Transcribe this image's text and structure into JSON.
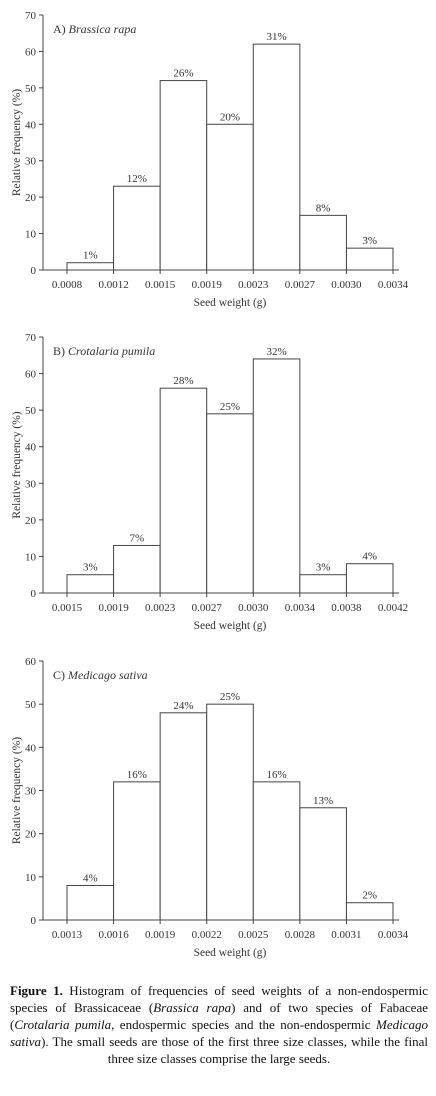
{
  "chart_data": [
    {
      "type": "bar",
      "panel_label": "A)",
      "title": "Brassica rapa",
      "xlabel": "Seed weight (g)",
      "ylabel": "Relative frequency (%)",
      "x_ticks": [
        "0.0008",
        "0.0012",
        "0.0015",
        "0.0019",
        "0.0023",
        "0.0027",
        "0.0030",
        "0.0034"
      ],
      "values": [
        2,
        23,
        52,
        40,
        62,
        15,
        6
      ],
      "data_labels": [
        "1%",
        "12%",
        "26%",
        "20%",
        "31%",
        "8%",
        "3%"
      ],
      "ylim": [
        0,
        70
      ],
      "y_ticks": [
        "0",
        "10",
        "20",
        "30",
        "40",
        "50",
        "60",
        "70"
      ],
      "grid": false
    },
    {
      "type": "bar",
      "panel_label": "B)",
      "title": "Crotalaria pumila",
      "xlabel": "Seed weight (g)",
      "ylabel": "Relative frequency (%)",
      "x_ticks": [
        "0.0015",
        "0.0019",
        "0.0023",
        "0.0027",
        "0.0030",
        "0.0034",
        "0.0038",
        "0.0042"
      ],
      "values": [
        5,
        13,
        56,
        49,
        64,
        5,
        8
      ],
      "data_labels": [
        "3%",
        "7%",
        "28%",
        "25%",
        "32%",
        "3%",
        "4%"
      ],
      "ylim": [
        0,
        70
      ],
      "y_ticks": [
        "0",
        "10",
        "20",
        "30",
        "40",
        "50",
        "60",
        "70"
      ],
      "grid": false
    },
    {
      "type": "bar",
      "panel_label": "C)",
      "title": "Medicago sativa",
      "xlabel": "Seed weight (g)",
      "ylabel": "Relative frequency (%)",
      "x_ticks": [
        "0.0013",
        "0.0016",
        "0.0019",
        "0.0022",
        "0.0025",
        "0.0028",
        "0.0031",
        "0.0034"
      ],
      "values": [
        8,
        32,
        48,
        50,
        32,
        26,
        4
      ],
      "data_labels": [
        "4%",
        "16%",
        "24%",
        "25%",
        "16%",
        "13%",
        "2%"
      ],
      "ylim": [
        0,
        60
      ],
      "y_ticks": [
        "0",
        "10",
        "20",
        "30",
        "40",
        "50",
        "60"
      ],
      "grid": false
    }
  ],
  "caption": {
    "label": "Figure 1.",
    "segments": [
      {
        "text": " Histogram of frequencies of seed weights of a non-endospermic species of Brassicaceae (",
        "italic": false
      },
      {
        "text": "Brassica rapa",
        "italic": true
      },
      {
        "text": ") and of two species of Fabaceae (",
        "italic": false
      },
      {
        "text": "Crotalaria pumila",
        "italic": true
      },
      {
        "text": ", endospermic species and the non-endospermic ",
        "italic": false
      },
      {
        "text": "Medicago sativa",
        "italic": true
      },
      {
        "text": "). The small seeds are those of the first three size classes, while the final three size classes comprise the large seeds.",
        "italic": false
      }
    ]
  }
}
